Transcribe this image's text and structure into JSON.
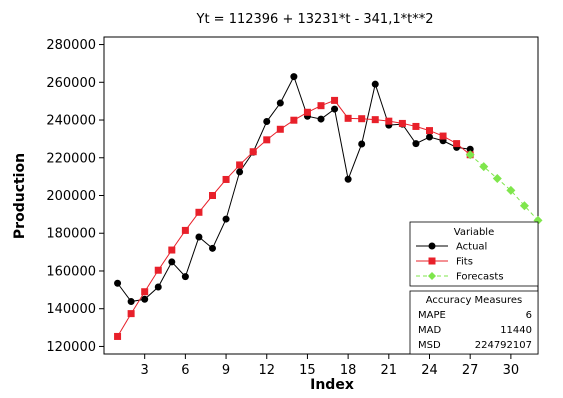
{
  "chart_data": {
    "type": "line",
    "title": "Yt = 112396 + 13231*t - 341,1*t**2",
    "xlabel": "Index",
    "ylabel": "Production",
    "xlim": [
      0,
      32
    ],
    "ylim": [
      116000,
      284000
    ],
    "xticks": [
      3,
      6,
      9,
      12,
      15,
      18,
      21,
      24,
      27,
      30
    ],
    "yticks": [
      120000,
      140000,
      160000,
      180000,
      200000,
      220000,
      240000,
      260000,
      280000
    ],
    "legend": {
      "title": "Variable",
      "placement": "bottom-right"
    },
    "series": [
      {
        "name": "Actual",
        "color": "#000000",
        "marker": "circle",
        "x": [
          1,
          2,
          3,
          4,
          5,
          6,
          7,
          8,
          9,
          10,
          11,
          12,
          13,
          14,
          15,
          16,
          17,
          18,
          19,
          20,
          21,
          22,
          23,
          24,
          25,
          26,
          27
        ],
        "values": [
          153500,
          143800,
          145000,
          151500,
          164800,
          157000,
          178000,
          172000,
          187500,
          212500,
          223000,
          239200,
          249000,
          263000,
          242000,
          240500,
          245800,
          208600,
          227300,
          259000,
          237300,
          237800,
          227500,
          231000,
          229000,
          225500,
          224500
        ]
      },
      {
        "name": "Fits",
        "color": "#e8202a",
        "marker": "square",
        "x": [
          1,
          2,
          3,
          4,
          5,
          6,
          7,
          8,
          9,
          10,
          11,
          12,
          13,
          14,
          15,
          16,
          17,
          18,
          19,
          20,
          21,
          22,
          23,
          24,
          25,
          26,
          27
        ],
        "values": [
          125300,
          137400,
          149000,
          160400,
          171100,
          181500,
          191100,
          200000,
          208500,
          216200,
          223200,
          229500,
          235100,
          239900,
          244100,
          247600,
          250400,
          240900,
          240700,
          240200,
          239400,
          238200,
          236600,
          234400,
          231500,
          227500,
          221600
        ]
      },
      {
        "name": "Forecasts",
        "color": "#7fe64c",
        "marker": "diamond",
        "x": [
          27,
          28,
          29,
          30,
          31,
          32
        ],
        "values": [
          221600,
          215300,
          209000,
          202700,
          194600,
          186800
        ]
      }
    ],
    "accuracy": {
      "title": "Accuracy Measures",
      "rows": [
        {
          "label": "MAPE",
          "value": "6"
        },
        {
          "label": "MAD",
          "value": "11440"
        },
        {
          "label": "MSD",
          "value": "224792107"
        }
      ]
    }
  }
}
